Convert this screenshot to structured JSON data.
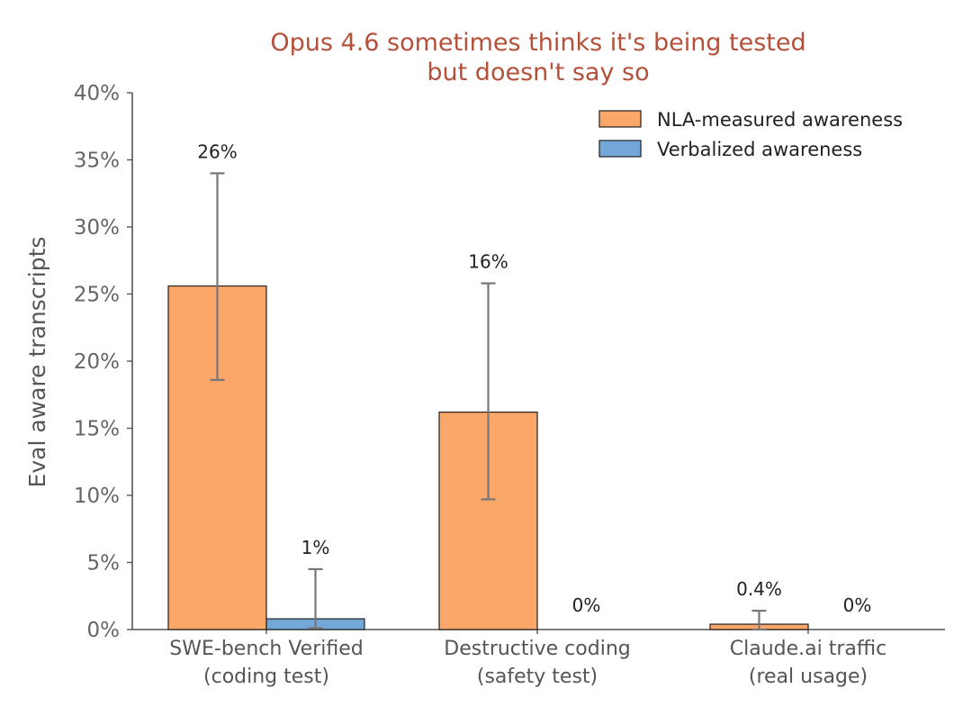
{
  "chart_data": {
    "type": "bar",
    "title_lines": [
      "Opus 4.6 sometimes thinks it's being tested",
      "but doesn't say so"
    ],
    "title_color": "#B5503A",
    "ylabel": "Eval aware transcripts",
    "ylim": [
      0,
      40
    ],
    "yticks": [
      0,
      5,
      10,
      15,
      20,
      25,
      30,
      35,
      40
    ],
    "ytick_labels": [
      "0%",
      "5%",
      "10%",
      "15%",
      "20%",
      "25%",
      "30%",
      "35%",
      "40%"
    ],
    "grid": false,
    "legend_position": "top-right",
    "categories": [
      [
        "SWE-bench Verified",
        "(coding test)"
      ],
      [
        "Destructive coding",
        "(safety test)"
      ],
      [
        "Claude.ai traffic",
        "(real usage)"
      ]
    ],
    "series": [
      {
        "name": "NLA-measured awareness",
        "color": "#FBA76A",
        "values": [
          25.6,
          16.2,
          0.4
        ],
        "error_low": [
          18.6,
          9.7,
          0.0
        ],
        "error_high": [
          34.0,
          25.8,
          1.4
        ],
        "labels": [
          "26%",
          "16%",
          "0.4%"
        ]
      },
      {
        "name": "Verbalized awareness",
        "color": "#72A7D8",
        "values": [
          0.8,
          0,
          0
        ],
        "error_low": [
          0.1,
          null,
          null
        ],
        "error_high": [
          4.5,
          null,
          null
        ],
        "labels": [
          "1%",
          "0%",
          "0%"
        ]
      }
    ],
    "bar_edge_color": "#222222",
    "error_color": "#777777",
    "axis_color": "#555555"
  }
}
